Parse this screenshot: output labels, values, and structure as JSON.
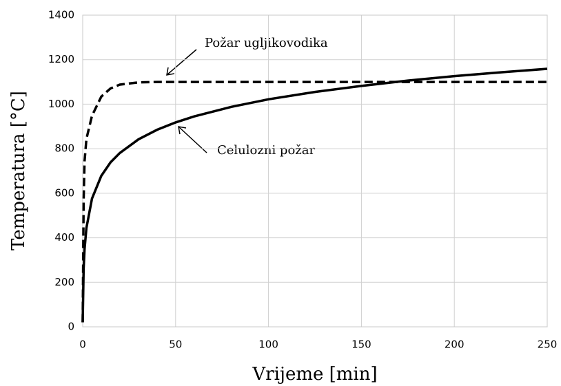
{
  "chart_data": {
    "type": "line",
    "xlabel": "Vrijeme [min]",
    "ylabel": "Temperatura [°C]",
    "x": [
      0,
      0.5,
      1,
      2,
      5,
      10,
      15,
      20,
      30,
      40,
      50,
      60,
      80,
      100,
      125,
      150,
      175,
      200,
      225,
      250
    ],
    "series": [
      {
        "name": "Požar ugljikovodika",
        "color": "#000000",
        "dashed": true,
        "values": [
          20,
          569,
          744,
          844,
          948,
          1034,
          1071,
          1088,
          1098,
          1100,
          1100,
          1100,
          1100,
          1100,
          1100,
          1100,
          1100,
          1100,
          1100,
          1100
        ]
      },
      {
        "name": "Celulozni požar",
        "color": "#000000",
        "dashed": false,
        "values": [
          20,
          261,
          349,
          444,
          576,
          678,
          739,
          781,
          842,
          885,
          918,
          945,
          988,
          1022,
          1055,
          1082,
          1106,
          1126,
          1143,
          1159
        ]
      }
    ],
    "xlim": [
      0,
      250
    ],
    "xticks": [
      0,
      50,
      100,
      150,
      200,
      250
    ],
    "ylim": [
      0,
      1400
    ],
    "yticks": [
      0,
      200,
      400,
      600,
      800,
      1000,
      1200,
      1400
    ],
    "grid": true
  }
}
